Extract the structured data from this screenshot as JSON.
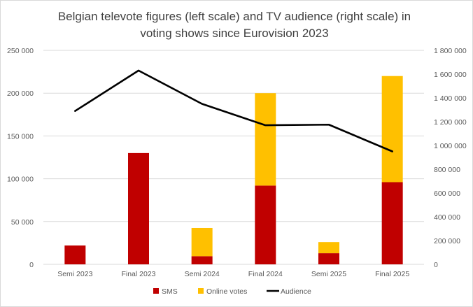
{
  "chart_data": {
    "type": "bar",
    "title": "Belgian televote figures (left scale) and TV audience (right scale) in voting shows since Eurovision 2023",
    "title_lines": [
      "Belgian televote figures (left scale) and TV audience (right scale) in",
      "voting shows since Eurovision 2023"
    ],
    "categories": [
      "Semi 2023",
      "Final 2023",
      "Semi 2024",
      "Final 2024",
      "Semi 2025",
      "Final 2025"
    ],
    "series": [
      {
        "name": "SMS",
        "type": "bar",
        "stacked": true,
        "axis": "left",
        "color": "#c00000",
        "values": [
          22000,
          130000,
          9500,
          92000,
          13000,
          96000
        ]
      },
      {
        "name": "Online votes",
        "type": "bar",
        "stacked": true,
        "axis": "left",
        "color": "#ffc000",
        "values": [
          0,
          0,
          33000,
          108000,
          13000,
          124000
        ]
      },
      {
        "name": "Audience",
        "type": "line",
        "axis": "right",
        "color": "#000000",
        "values": [
          1290000,
          1630000,
          1350000,
          1170000,
          1175000,
          950000
        ]
      }
    ],
    "y_left": {
      "min": 0,
      "max": 250000,
      "ticks": [
        0,
        50000,
        100000,
        150000,
        200000,
        250000
      ],
      "tick_labels": [
        "0",
        "50 000",
        "100 000",
        "150 000",
        "200 000",
        "250 000"
      ]
    },
    "y_right": {
      "min": 0,
      "max": 1800000,
      "ticks": [
        0,
        200000,
        400000,
        600000,
        800000,
        1000000,
        1200000,
        1400000,
        1600000,
        1800000
      ],
      "tick_labels": [
        "0",
        "200 000",
        "400 000",
        "600 000",
        "800 000",
        "1 000 000",
        "1 200 000",
        "1 400 000",
        "1 600 000",
        "1 800 000"
      ]
    },
    "gridlines": true,
    "legend_position": "bottom"
  }
}
